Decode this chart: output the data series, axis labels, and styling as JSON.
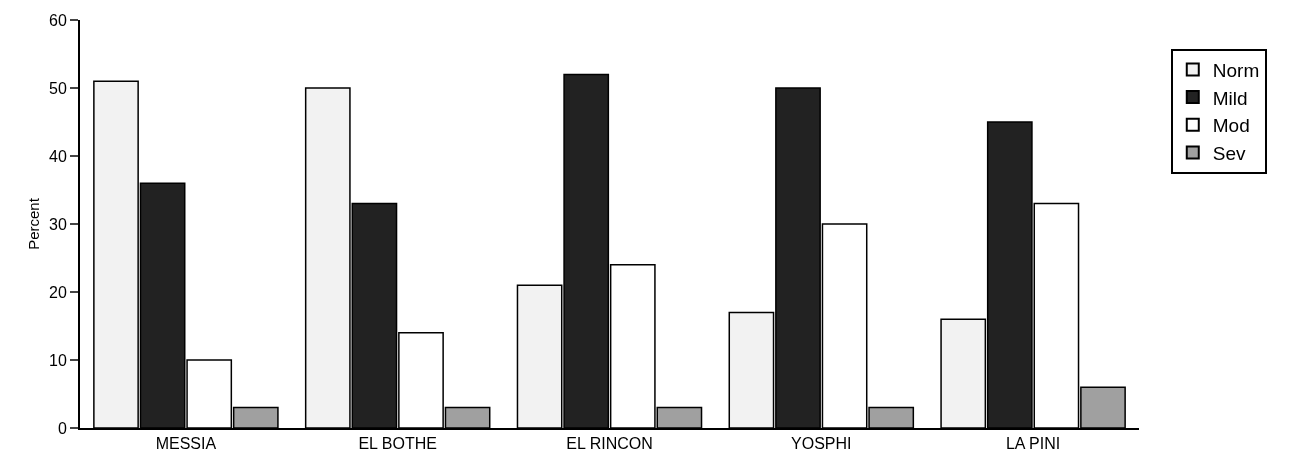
{
  "chart_data": {
    "type": "bar",
    "ylabel": "Percent",
    "categories": [
      "MESSIA",
      "EL BOTHE",
      "EL RINCON",
      "YOSPHI",
      "LA PINI"
    ],
    "series": [
      {
        "name": "Norm",
        "color": "#f2f2f2",
        "values": [
          51,
          50,
          21,
          17,
          16
        ]
      },
      {
        "name": "Mild",
        "color": "#222222",
        "values": [
          36,
          33,
          52,
          50,
          45
        ]
      },
      {
        "name": "Mod",
        "color": "#ffffff",
        "values": [
          10,
          14,
          24,
          30,
          33
        ]
      },
      {
        "name": "Sev",
        "color": "#a0a0a0",
        "values": [
          3,
          3,
          3,
          3,
          6
        ]
      }
    ],
    "ylim": [
      0,
      60
    ],
    "yticks": [
      0,
      10,
      20,
      30,
      40,
      50,
      60
    ],
    "grid": false,
    "legend": "right"
  }
}
